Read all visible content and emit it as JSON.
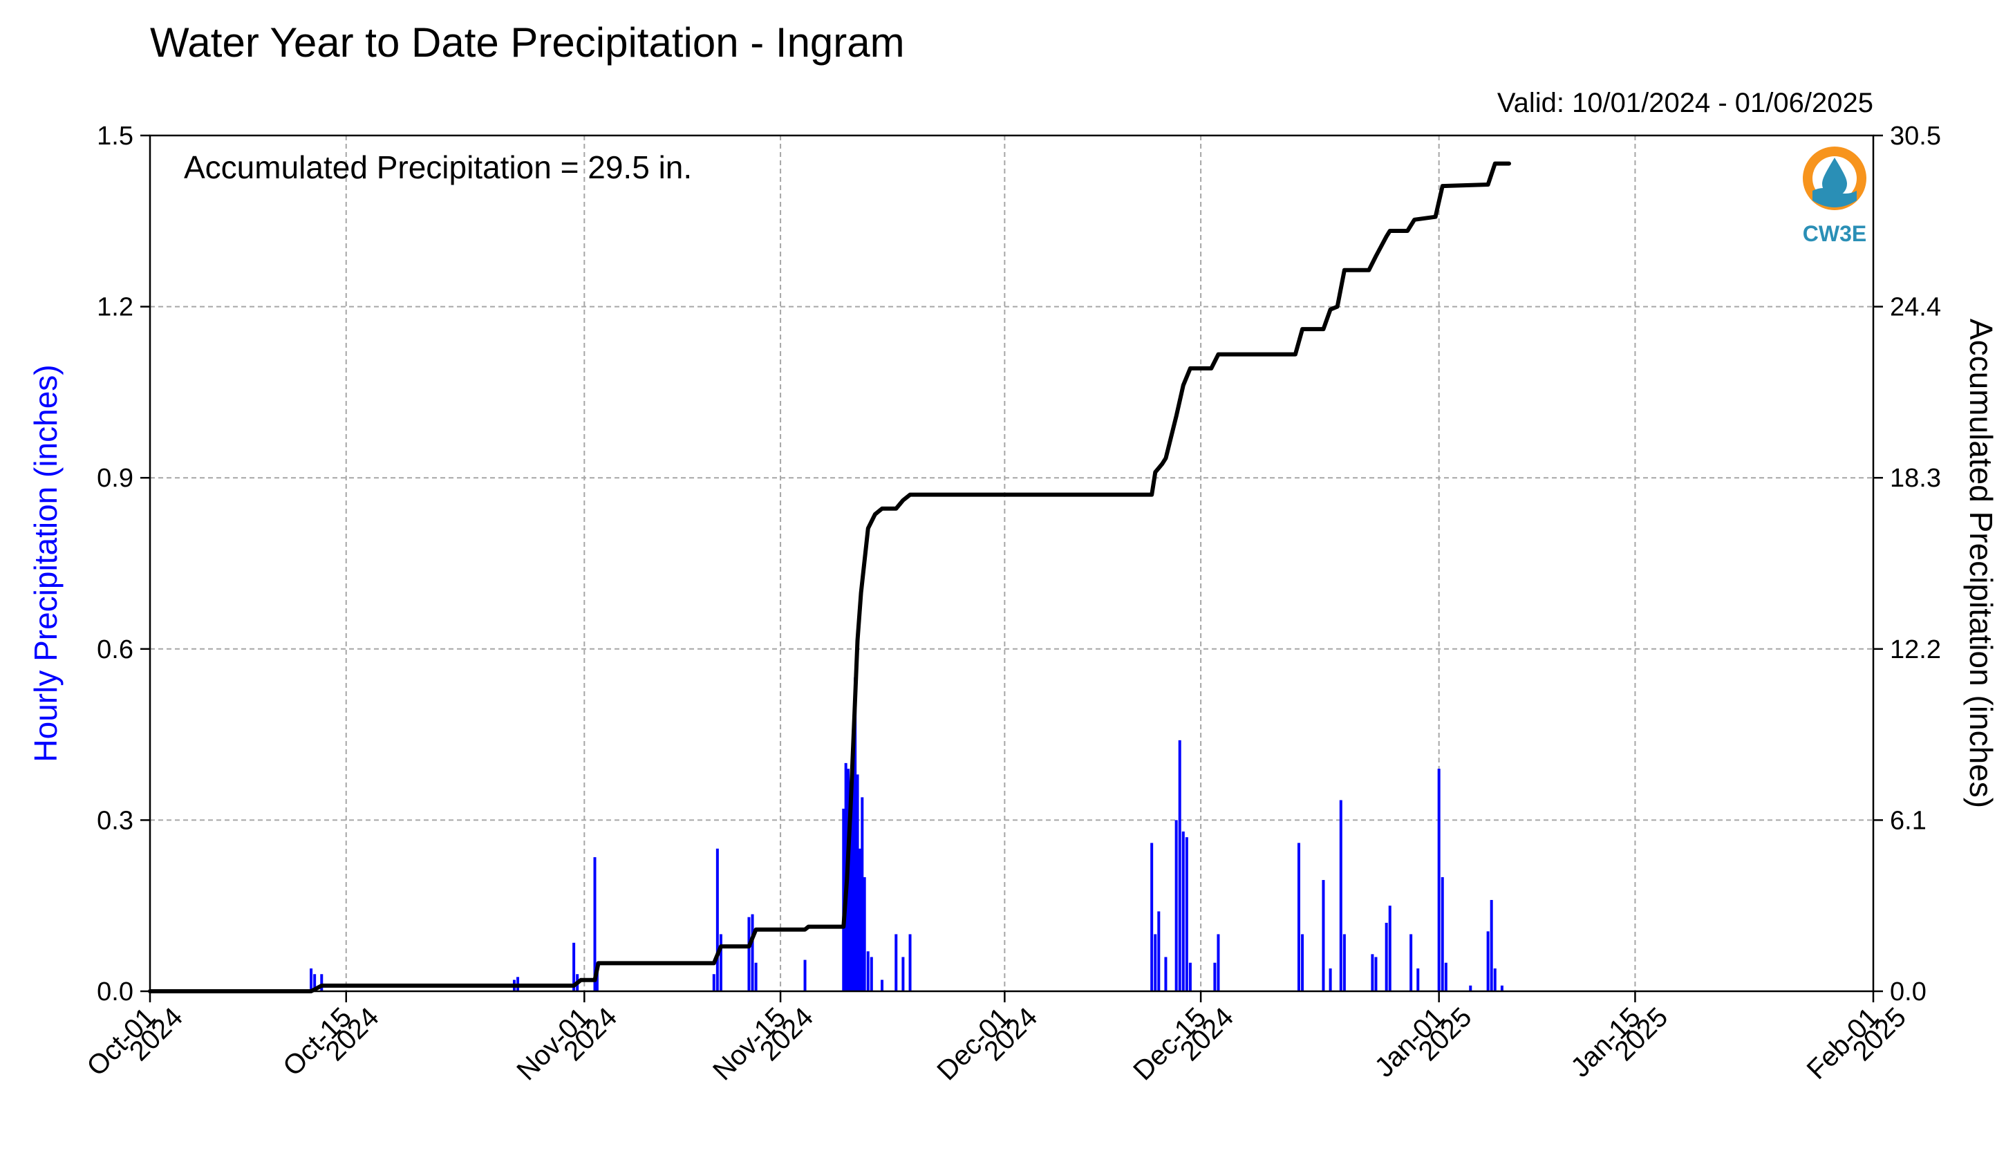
{
  "chart_data": {
    "type": "bar+line",
    "title": "Water Year to Date Precipitation - Ingram",
    "subtitle": "Valid: 10/01/2024 - 01/06/2025",
    "annotation": "Accumulated Precipitation = 29.5 in.",
    "ylabel_left": "Hourly Precipitation (inches)",
    "ylabel_right": "Accumulated Precipitation (inches)",
    "xlim": [
      "2024-10-01",
      "2025-02-01"
    ],
    "ylim_left": [
      0,
      1.5
    ],
    "ylim_right": [
      0,
      30.5
    ],
    "grid": true,
    "yticks_left": [
      "0.0",
      "0.3",
      "0.6",
      "0.9",
      "1.2",
      "1.5"
    ],
    "yticks_right": [
      "0.0",
      "6.1",
      "12.2",
      "18.3",
      "24.4",
      "30.5"
    ],
    "xticks": [
      {
        "date": "2024-10-01",
        "line1": "Oct-01",
        "line2": "2024"
      },
      {
        "date": "2024-10-15",
        "line1": "Oct-15",
        "line2": "2024"
      },
      {
        "date": "2024-11-01",
        "line1": "Nov-01",
        "line2": "2024"
      },
      {
        "date": "2024-11-15",
        "line1": "Nov-15",
        "line2": "2024"
      },
      {
        "date": "2024-12-01",
        "line1": "Dec-01",
        "line2": "2024"
      },
      {
        "date": "2024-12-15",
        "line1": "Dec-15",
        "line2": "2024"
      },
      {
        "date": "2025-01-01",
        "line1": "Jan-01",
        "line2": "2025"
      },
      {
        "date": "2025-01-15",
        "line1": "Jan-15",
        "line2": "2025"
      },
      {
        "date": "2025-02-01",
        "line1": "Feb-01",
        "line2": "2025"
      }
    ],
    "series": [
      {
        "name": "Hourly Precipitation",
        "kind": "bar",
        "color": "#0000ff",
        "points": [
          [
            "2024-10-12 12:00",
            0.04
          ],
          [
            "2024-10-12 18:00",
            0.03
          ],
          [
            "2024-10-13 06:00",
            0.03
          ],
          [
            "2024-10-27 00:00",
            0.02
          ],
          [
            "2024-10-27 06:00",
            0.025
          ],
          [
            "2024-10-31 06:00",
            0.085
          ],
          [
            "2024-10-31 12:00",
            0.03
          ],
          [
            "2024-11-01 18:00",
            0.235
          ],
          [
            "2024-11-01 22:00",
            0.05
          ],
          [
            "2024-11-10 06:00",
            0.03
          ],
          [
            "2024-11-10 12:00",
            0.25
          ],
          [
            "2024-11-10 18:00",
            0.1
          ],
          [
            "2024-11-12 18:00",
            0.13
          ],
          [
            "2024-11-13 00:00",
            0.135
          ],
          [
            "2024-11-13 06:00",
            0.05
          ],
          [
            "2024-11-16 18:00",
            0.055
          ],
          [
            "2024-11-19 12:00",
            0.32
          ],
          [
            "2024-11-19 16:00",
            0.4
          ],
          [
            "2024-11-19 20:00",
            0.39
          ],
          [
            "2024-11-20 00:00",
            0.3
          ],
          [
            "2024-11-20 04:00",
            0.38
          ],
          [
            "2024-11-20 08:00",
            0.55
          ],
          [
            "2024-11-20 12:00",
            0.38
          ],
          [
            "2024-11-20 16:00",
            0.25
          ],
          [
            "2024-11-20 20:00",
            0.34
          ],
          [
            "2024-11-21 00:00",
            0.2
          ],
          [
            "2024-11-21 06:00",
            0.07
          ],
          [
            "2024-11-21 12:00",
            0.06
          ],
          [
            "2024-11-22 06:00",
            0.02
          ],
          [
            "2024-11-23 06:00",
            0.1
          ],
          [
            "2024-11-23 18:00",
            0.06
          ],
          [
            "2024-11-24 06:00",
            0.1
          ],
          [
            "2024-12-11 12:00",
            0.26
          ],
          [
            "2024-12-11 18:00",
            0.1
          ],
          [
            "2024-12-12 00:00",
            0.14
          ],
          [
            "2024-12-12 12:00",
            0.06
          ],
          [
            "2024-12-13 06:00",
            0.3
          ],
          [
            "2024-12-13 12:00",
            0.44
          ],
          [
            "2024-12-13 18:00",
            0.28
          ],
          [
            "2024-12-14 00:00",
            0.27
          ],
          [
            "2024-12-14 06:00",
            0.05
          ],
          [
            "2024-12-16 00:00",
            0.05
          ],
          [
            "2024-12-16 06:00",
            0.1
          ],
          [
            "2024-12-22 00:00",
            0.26
          ],
          [
            "2024-12-22 06:00",
            0.1
          ],
          [
            "2024-12-23 18:00",
            0.195
          ],
          [
            "2024-12-24 06:00",
            0.04
          ],
          [
            "2024-12-25 00:00",
            0.335
          ],
          [
            "2024-12-25 06:00",
            0.1
          ],
          [
            "2024-12-27 06:00",
            0.065
          ],
          [
            "2024-12-27 12:00",
            0.06
          ],
          [
            "2024-12-28 06:00",
            0.12
          ],
          [
            "2024-12-28 12:00",
            0.15
          ],
          [
            "2024-12-30 00:00",
            0.1
          ],
          [
            "2024-12-30 12:00",
            0.04
          ],
          [
            "2025-01-01 00:00",
            0.39
          ],
          [
            "2025-01-01 06:00",
            0.2
          ],
          [
            "2025-01-01 12:00",
            0.05
          ],
          [
            "2025-01-03 06:00",
            0.01
          ],
          [
            "2025-01-04 12:00",
            0.105
          ],
          [
            "2025-01-04 18:00",
            0.16
          ],
          [
            "2025-01-05 00:00",
            0.04
          ],
          [
            "2025-01-05 12:00",
            0.01
          ]
        ]
      },
      {
        "name": "Accumulated Precipitation",
        "kind": "line",
        "color": "#000000",
        "points": [
          [
            "2024-10-01 00:00",
            0.0
          ],
          [
            "2024-10-12 12:00",
            0.0
          ],
          [
            "2024-10-13 06:00",
            0.2
          ],
          [
            "2024-10-31 06:00",
            0.2
          ],
          [
            "2024-10-31 18:00",
            0.4
          ],
          [
            "2024-11-01 18:00",
            0.4
          ],
          [
            "2024-11-02 00:00",
            1.0
          ],
          [
            "2024-11-10 06:00",
            1.0
          ],
          [
            "2024-11-10 18:00",
            1.6
          ],
          [
            "2024-11-12 18:00",
            1.6
          ],
          [
            "2024-11-13 06:00",
            2.2
          ],
          [
            "2024-11-16 18:00",
            2.2
          ],
          [
            "2024-11-17 00:00",
            2.3
          ],
          [
            "2024-11-19 12:00",
            2.3
          ],
          [
            "2024-11-19 18:00",
            4.0
          ],
          [
            "2024-11-20 00:00",
            6.5
          ],
          [
            "2024-11-20 06:00",
            9.5
          ],
          [
            "2024-11-20 12:00",
            12.5
          ],
          [
            "2024-11-20 18:00",
            14.2
          ],
          [
            "2024-11-21 06:00",
            16.5
          ],
          [
            "2024-11-21 18:00",
            17.0
          ],
          [
            "2024-11-22 06:00",
            17.2
          ],
          [
            "2024-11-23 06:00",
            17.2
          ],
          [
            "2024-11-23 18:00",
            17.5
          ],
          [
            "2024-11-24 06:00",
            17.7
          ],
          [
            "2024-12-11 12:00",
            17.7
          ],
          [
            "2024-12-11 18:00",
            18.5
          ],
          [
            "2024-12-12 06:00",
            18.8
          ],
          [
            "2024-12-12 12:00",
            19.0
          ],
          [
            "2024-12-13 06:00",
            20.5
          ],
          [
            "2024-12-13 18:00",
            21.6
          ],
          [
            "2024-12-14 06:00",
            22.2
          ],
          [
            "2024-12-15 18:00",
            22.2
          ],
          [
            "2024-12-16 06:00",
            22.7
          ],
          [
            "2024-12-21 18:00",
            22.7
          ],
          [
            "2024-12-22 06:00",
            23.6
          ],
          [
            "2024-12-23 18:00",
            23.6
          ],
          [
            "2024-12-24 06:00",
            24.3
          ],
          [
            "2024-12-24 18:00",
            24.4
          ],
          [
            "2024-12-25 06:00",
            25.7
          ],
          [
            "2024-12-27 00:00",
            25.7
          ],
          [
            "2024-12-27 12:00",
            26.2
          ],
          [
            "2024-12-28 06:00",
            26.9
          ],
          [
            "2024-12-28 12:00",
            27.1
          ],
          [
            "2024-12-29 18:00",
            27.1
          ],
          [
            "2024-12-30 06:00",
            27.5
          ],
          [
            "2024-12-31 18:00",
            27.6
          ],
          [
            "2025-01-01 06:00",
            28.7
          ],
          [
            "2025-01-04 12:00",
            28.75
          ],
          [
            "2025-01-05 00:00",
            29.5
          ],
          [
            "2025-01-06 00:00",
            29.5
          ]
        ]
      }
    ],
    "colors": {
      "bars": "#0000ff",
      "line": "#000000",
      "grid": "#a6a6a6",
      "left_label": "#0000ff"
    },
    "logo": {
      "text": "CW3E",
      "ring_color": "#f7941d",
      "inner_color": "#2a8fb6"
    }
  }
}
